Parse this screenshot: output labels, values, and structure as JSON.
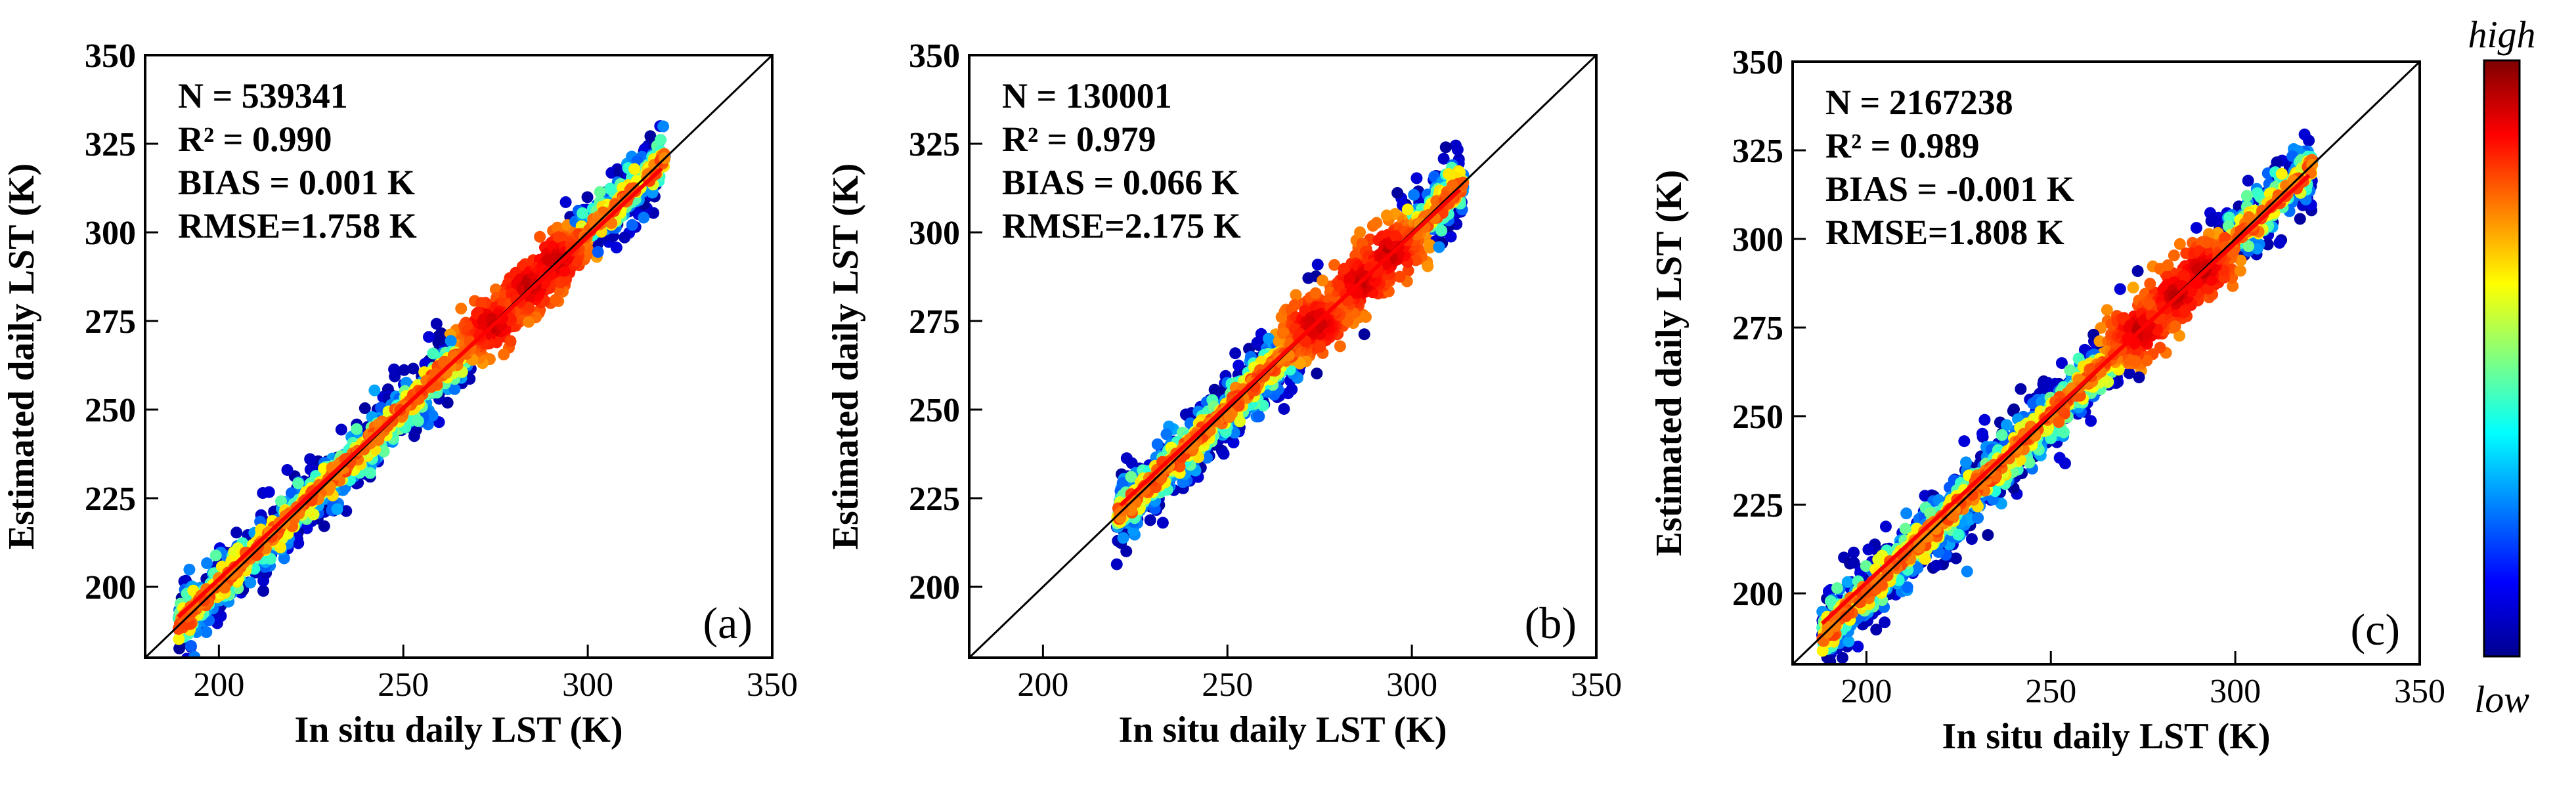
{
  "chart_data": [
    {
      "type": "scatter",
      "panel_label": "(a)",
      "xlabel": "In situ daily LST (K)",
      "ylabel": "Estimated daily LST (K)",
      "xlim": [
        180,
        350
      ],
      "ylim": [
        180,
        350
      ],
      "xticks": [
        "200",
        "250",
        "300",
        "350"
      ],
      "yticks": [
        "200",
        "225",
        "250",
        "275",
        "300",
        "325",
        "350"
      ],
      "stats": [
        "N = 539341",
        "R² = 0.990",
        "BIAS = 0.001 K",
        "RMSE=1.758 K"
      ],
      "fit_line": {
        "x": [
          189,
          320
        ],
        "y": [
          191.5,
          318
        ]
      },
      "cloud": {
        "x_range": [
          189,
          321
        ],
        "spread": 4.5,
        "density_peaks": [
          [
            274,
            274
          ],
          [
            284,
            285
          ],
          [
            291,
            292
          ]
        ]
      }
    },
    {
      "type": "scatter",
      "panel_label": "(b)",
      "xlabel": "In situ daily LST (K)",
      "ylabel": "Estimated daily LST (K)",
      "xlim": [
        180,
        350
      ],
      "ylim": [
        180,
        350
      ],
      "xticks": [
        "200",
        "250",
        "300",
        "350"
      ],
      "yticks": [
        "200",
        "225",
        "250",
        "275",
        "300",
        "325",
        "350"
      ],
      "stats": [
        "N = 130001",
        "R² = 0.979",
        "BIAS = 0.066  K",
        "RMSE=2.175  K"
      ],
      "fit_line": {
        "x": [
          221,
          313
        ],
        "y": [
          223,
          312
        ]
      },
      "cloud": {
        "x_range": [
          220,
          314
        ],
        "spread": 4.5,
        "density_peaks": [
          [
            274,
            274
          ],
          [
            286,
            286
          ],
          [
            294,
            294
          ]
        ]
      }
    },
    {
      "type": "scatter",
      "panel_label": "(c)",
      "xlabel": "In situ daily LST (K)",
      "ylabel": "Estimated daily LST (K)",
      "xlim": [
        180,
        350
      ],
      "ylim": [
        180,
        350
      ],
      "xticks": [
        "200",
        "250",
        "300",
        "350"
      ],
      "yticks": [
        "200",
        "225",
        "250",
        "275",
        "300",
        "325",
        "350"
      ],
      "stats": [
        "N = 2167238",
        "R² = 0.989",
        "BIAS = -0.001 K",
        "RMSE=1.808  K"
      ],
      "fit_line": {
        "x": [
          188,
          320
        ],
        "y": [
          191.5,
          318
        ]
      },
      "cloud": {
        "x_range": [
          188,
          321
        ],
        "spread": 5,
        "density_peaks": [
          [
            274,
            274
          ],
          [
            284,
            284
          ],
          [
            291,
            291
          ]
        ]
      }
    }
  ],
  "colorbar": {
    "high_label": "high",
    "low_label": "low",
    "colors": [
      "#00008f",
      "#0000ff",
      "#0080ff",
      "#00ffff",
      "#80ff80",
      "#ffff00",
      "#ff8000",
      "#ff0000",
      "#800000"
    ]
  },
  "colors": {
    "one_to_one_line": "#000000",
    "fit_line": "#ff0000"
  }
}
